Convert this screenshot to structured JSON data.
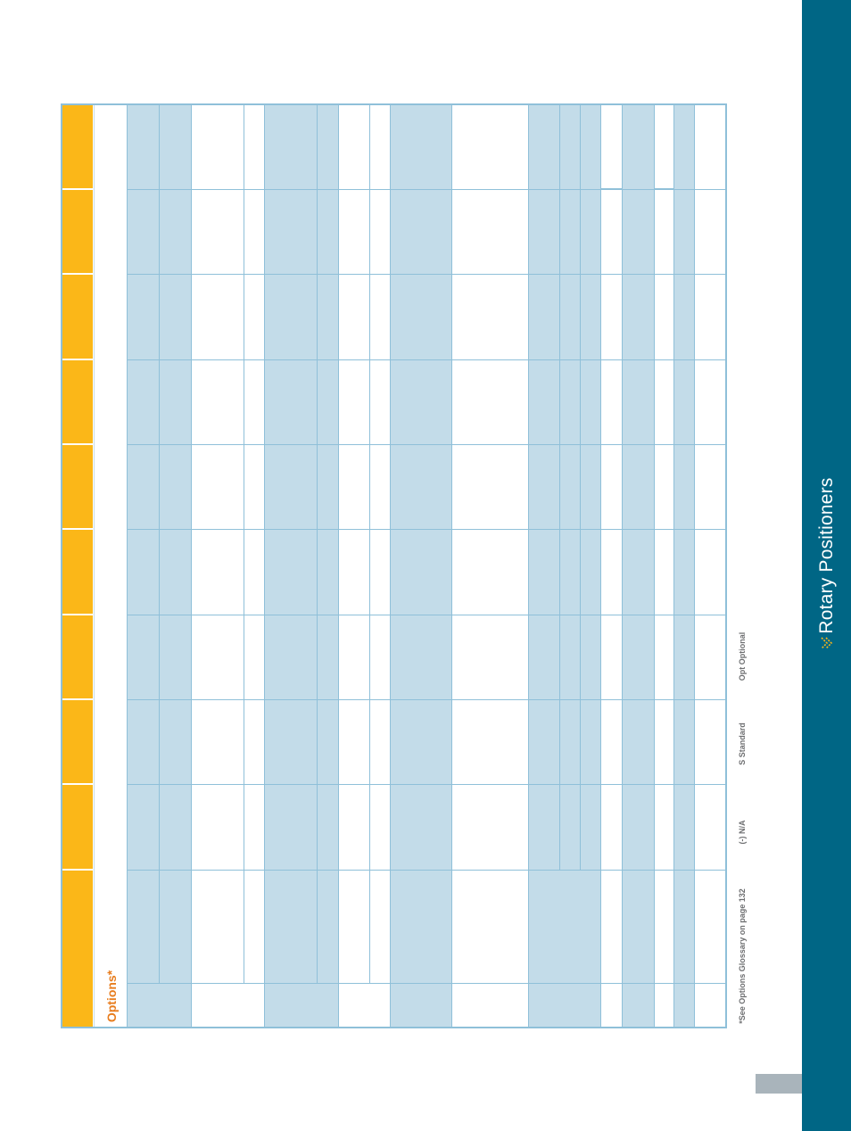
{
  "sidebar": {
    "title": "Rotary Positioners",
    "accent_color": "#fbb718",
    "background_color": "#006685"
  },
  "table": {
    "title": "Options*",
    "title_color": "#e87d1e",
    "header_color": "#fbb718",
    "band_color": "#c3dce9",
    "grid_color": "#8fc0d9"
  },
  "legend": {
    "glossary_note": "*See Options Glossary on page 132",
    "na": "(-) N/A",
    "standard": "S  Standard",
    "optional": "Opt  Optional"
  }
}
